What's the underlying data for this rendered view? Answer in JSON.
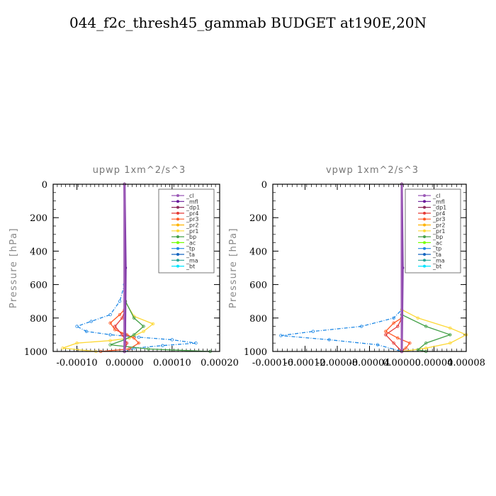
{
  "page_title": "044_f2c_thresh45_gammab  BUDGET at190E,20N",
  "legend_items": [
    {
      "label": "_cl",
      "color": "#9b59b6",
      "marker": "circle"
    },
    {
      "label": "_mfl",
      "color": "#6a1b9a",
      "marker": "triangle"
    },
    {
      "label": "_dp1",
      "color": "#8e2a5a",
      "marker": "dot"
    },
    {
      "label": "_pr4",
      "color": "#e53935",
      "marker": "circle"
    },
    {
      "label": "_pr3",
      "color": "#ff5722",
      "marker": "circle"
    },
    {
      "label": "_pr2",
      "color": "#ffb300",
      "marker": "triangle"
    },
    {
      "label": "_pr1",
      "color": "#fdd835",
      "marker": "circle"
    },
    {
      "label": "_bp",
      "color": "#43a047",
      "marker": "cross"
    },
    {
      "label": "_ac",
      "color": "#76ff03",
      "marker": "dot"
    },
    {
      "label": "_tp",
      "color": "#1e88e5",
      "marker": "dot"
    },
    {
      "label": "_ta",
      "color": "#1565c0",
      "marker": "cross"
    },
    {
      "label": "_ma",
      "color": "#26a69a",
      "marker": "dash"
    },
    {
      "label": "_bt",
      "color": "#00e5ff",
      "marker": "dot"
    }
  ],
  "chart_data": [
    {
      "type": "line",
      "title": "upwp   1xm^2/s^3",
      "ylabel": "Pressure [hPa]",
      "xlim": [
        -0.00015,
        0.0002
      ],
      "ylim": [
        1000,
        0
      ],
      "xticks": [
        -0.0001,
        0,
        0.0001,
        0.0002
      ],
      "xtick_labels": [
        "-0.00010",
        "0.00000",
        "0.00010",
        "0.00020"
      ],
      "yticks": [
        0,
        200,
        400,
        600,
        800,
        1000
      ],
      "ytick_labels": [
        "0",
        "200",
        "400",
        "600",
        "800",
        "1000"
      ],
      "legend_position": "top-right",
      "series": [
        {
          "name": "_tp",
          "color": "#1e88e5",
          "dashed": true,
          "points": [
            [
              0,
              0
            ],
            [
              0,
              600
            ],
            [
              -1e-05,
              700
            ],
            [
              -3e-05,
              780
            ],
            [
              -7e-05,
              820
            ],
            [
              -0.0001,
              850
            ],
            [
              -8e-05,
              880
            ],
            [
              -3e-05,
              900
            ],
            [
              3e-05,
              915
            ],
            [
              0.0001,
              930
            ],
            [
              0.00015,
              950
            ],
            [
              8e-05,
              965
            ],
            [
              2e-05,
              980
            ],
            [
              0,
              1000
            ]
          ]
        },
        {
          "name": "_pr1",
          "color": "#fdd835",
          "dashed": false,
          "points": [
            [
              0,
              0
            ],
            [
              1e-06,
              700
            ],
            [
              2e-05,
              790
            ],
            [
              6e-05,
              835
            ],
            [
              4e-05,
              880
            ],
            [
              1e-05,
              920
            ],
            [
              -3e-05,
              935
            ],
            [
              -0.0001,
              950
            ],
            [
              -0.00013,
              980
            ],
            [
              -6e-05,
              1000
            ]
          ]
        },
        {
          "name": "_pr3",
          "color": "#ff5722",
          "dashed": false,
          "points": [
            [
              0,
              0
            ],
            [
              0,
              750
            ],
            [
              -1e-05,
              780
            ],
            [
              -3e-05,
              830
            ],
            [
              -2e-05,
              870
            ],
            [
              5e-06,
              900
            ],
            [
              2e-05,
              920
            ],
            [
              3e-05,
              950
            ],
            [
              1e-05,
              985
            ],
            [
              -5e-05,
              1000
            ]
          ]
        },
        {
          "name": "_pr4",
          "color": "#e53935",
          "dashed": false,
          "points": [
            [
              0,
              0
            ],
            [
              0,
              760
            ],
            [
              -5e-06,
              800
            ],
            [
              -2e-05,
              850
            ],
            [
              -5e-06,
              900
            ],
            [
              5e-06,
              950
            ],
            [
              0,
              1000
            ]
          ]
        },
        {
          "name": "_bp",
          "color": "#43a047",
          "dashed": false,
          "points": [
            [
              0,
              0
            ],
            [
              2e-06,
              700
            ],
            [
              2e-05,
              800
            ],
            [
              4e-05,
              850
            ],
            [
              2e-05,
              900
            ],
            [
              0,
              930
            ],
            [
              -3e-05,
              960
            ],
            [
              5e-05,
              985
            ],
            [
              0.00018,
              1000
            ]
          ]
        },
        {
          "name": "_mfl",
          "color": "#6a1b9a",
          "dashed": false,
          "points": [
            [
              0,
              0
            ],
            [
              2e-06,
              500
            ],
            [
              1e-06,
              900
            ],
            [
              0,
              1000
            ]
          ]
        },
        {
          "name": "_cl",
          "color": "#9b59b6",
          "dashed": false,
          "points": [
            [
              0,
              0
            ],
            [
              0,
              1000
            ]
          ]
        }
      ]
    },
    {
      "type": "line",
      "title": "vpwp   1xm^2/s^3",
      "ylabel": "Pressure [hPa]",
      "xlim": [
        -0.00016,
        8e-05
      ],
      "ylim": [
        1000,
        0
      ],
      "xticks": [
        -0.00016,
        -0.00012,
        -8e-05,
        -4e-05,
        0,
        4e-05,
        8e-05
      ],
      "xtick_labels": [
        "-0.00016",
        "-0.00012",
        "-0.00008",
        "-0.00004",
        "0.00000",
        "0.00004",
        "0.00008"
      ],
      "yticks": [
        0,
        200,
        400,
        600,
        800,
        1000
      ],
      "ytick_labels": [
        "0",
        "200",
        "400",
        "600",
        "800",
        "1000"
      ],
      "legend_position": "top-right",
      "series": [
        {
          "name": "_tp",
          "color": "#1e88e5",
          "dashed": true,
          "points": [
            [
              0,
              0
            ],
            [
              0,
              750
            ],
            [
              -1e-05,
              800
            ],
            [
              -5e-05,
              850
            ],
            [
              -0.00011,
              880
            ],
            [
              -0.00015,
              905
            ],
            [
              -9e-05,
              930
            ],
            [
              -3e-05,
              960
            ],
            [
              0,
              1000
            ]
          ]
        },
        {
          "name": "_pr1",
          "color": "#fdd835",
          "dashed": false,
          "points": [
            [
              0,
              0
            ],
            [
              0,
              750
            ],
            [
              2e-05,
              800
            ],
            [
              6e-05,
              860
            ],
            [
              8e-05,
              900
            ],
            [
              6e-05,
              950
            ],
            [
              3e-05,
              980
            ],
            [
              0,
              1000
            ]
          ]
        },
        {
          "name": "_pr3",
          "color": "#ff5722",
          "dashed": false,
          "points": [
            [
              0,
              0
            ],
            [
              0,
              800
            ],
            [
              -1e-05,
              830
            ],
            [
              -2e-05,
              880
            ],
            [
              -5e-06,
              920
            ],
            [
              1e-05,
              950
            ],
            [
              5e-06,
              980
            ],
            [
              0,
              1000
            ]
          ]
        },
        {
          "name": "_pr4",
          "color": "#e53935",
          "dashed": false,
          "points": [
            [
              0,
              0
            ],
            [
              0,
              800
            ],
            [
              -5e-06,
              850
            ],
            [
              -2e-05,
              900
            ],
            [
              -1e-05,
              950
            ],
            [
              0,
              1000
            ]
          ]
        },
        {
          "name": "_bp",
          "color": "#43a047",
          "dashed": false,
          "points": [
            [
              0,
              0
            ],
            [
              0,
              780
            ],
            [
              3e-05,
              850
            ],
            [
              6e-05,
              900
            ],
            [
              3e-05,
              950
            ],
            [
              2e-05,
              990
            ],
            [
              3e-05,
              1000
            ]
          ]
        },
        {
          "name": "_mfl",
          "color": "#6a1b9a",
          "dashed": false,
          "points": [
            [
              0,
              0
            ],
            [
              1e-06,
              500
            ],
            [
              0,
              1000
            ]
          ]
        },
        {
          "name": "_cl",
          "color": "#9b59b6",
          "dashed": false,
          "points": [
            [
              0,
              0
            ],
            [
              0,
              1000
            ]
          ]
        }
      ]
    }
  ]
}
